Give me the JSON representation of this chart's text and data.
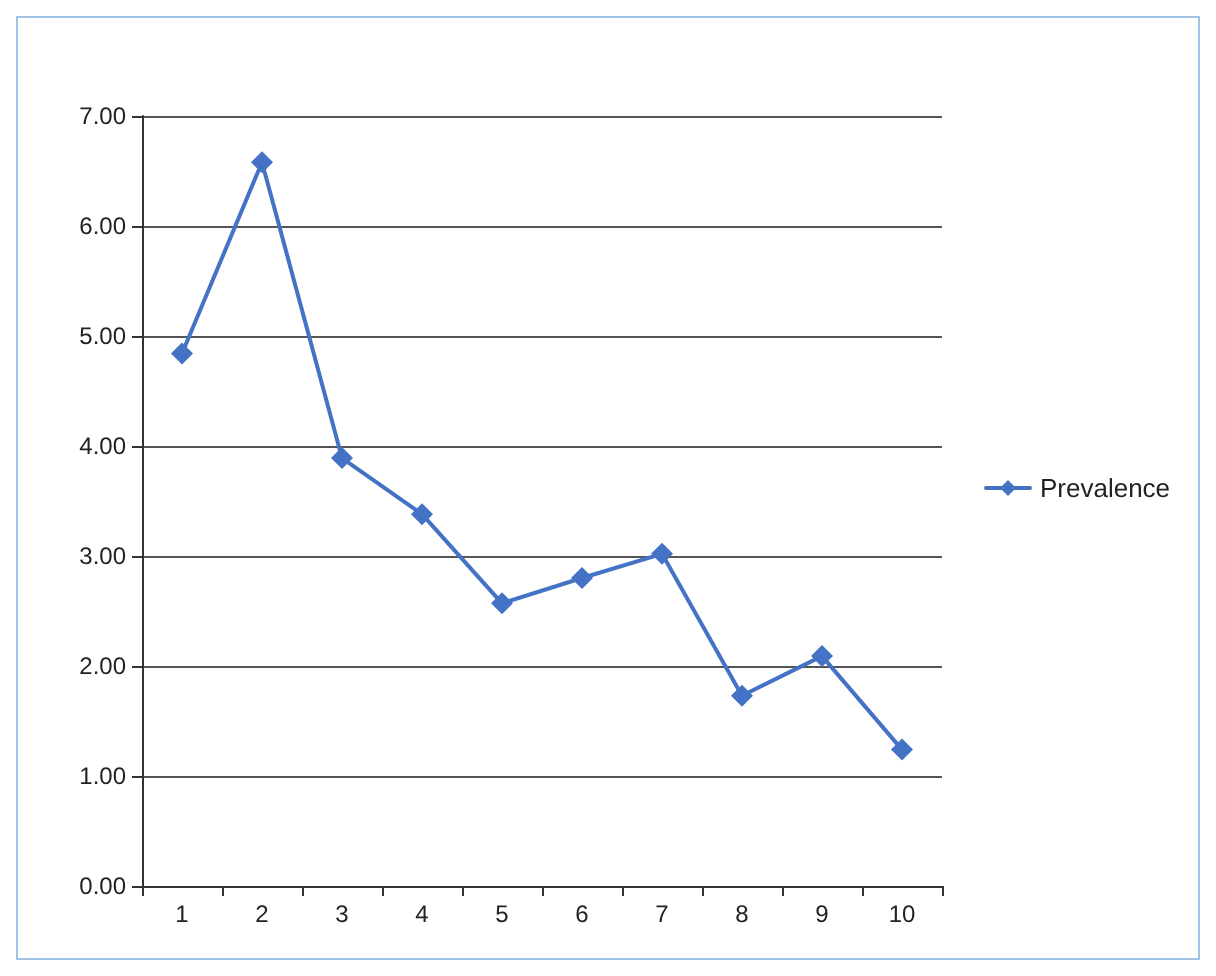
{
  "chart_data": {
    "type": "line",
    "categories": [
      "1",
      "2",
      "3",
      "4",
      "5",
      "6",
      "7",
      "8",
      "9",
      "10"
    ],
    "series": [
      {
        "name": "Prevalence",
        "color": "#4472c4",
        "values": [
          4.84,
          6.58,
          3.89,
          3.38,
          2.57,
          2.8,
          3.02,
          1.73,
          2.09,
          1.24
        ]
      }
    ],
    "ylim": [
      0,
      7
    ],
    "yticks": [
      {
        "value": 0,
        "label": "0.00"
      },
      {
        "value": 1,
        "label": "1.00"
      },
      {
        "value": 2,
        "label": "2.00"
      },
      {
        "value": 3,
        "label": "3.00"
      },
      {
        "value": 4,
        "label": "4.00"
      },
      {
        "value": 5,
        "label": "5.00"
      },
      {
        "value": 6,
        "label": "6.00"
      },
      {
        "value": 7,
        "label": "7.00"
      }
    ],
    "grid": "y",
    "legend": "right",
    "marker": "diamond",
    "line_style": "solid"
  }
}
